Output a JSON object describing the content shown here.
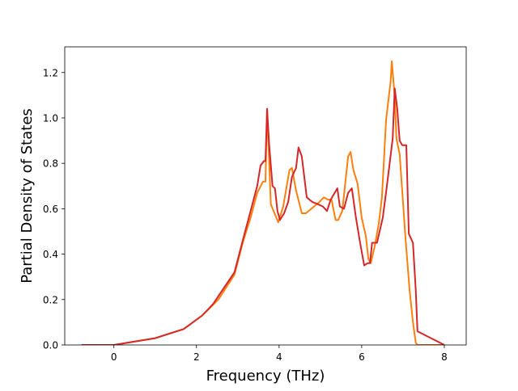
{
  "chart_data": {
    "type": "line",
    "title": "",
    "xlabel": "Frequency (THz)",
    "ylabel": "Partial Density of States",
    "xlim": [
      -1.19,
      8.53
    ],
    "ylim": [
      0,
      1.313
    ],
    "xticks": [
      0,
      2,
      4,
      6,
      8
    ],
    "xtick_labels": [
      "0",
      "2",
      "4",
      "6",
      "8"
    ],
    "yticks": [
      0.0,
      0.2,
      0.4,
      0.6,
      0.8,
      1.0,
      1.2
    ],
    "ytick_labels": [
      "0.0",
      "0.2",
      "0.4",
      "0.6",
      "0.8",
      "1.0",
      "1.2"
    ],
    "grid": false,
    "legend": null,
    "series": [
      {
        "name": "series-orange",
        "color": "#ff7f0e",
        "x": [
          -0.78,
          0,
          1.0,
          1.69,
          2.14,
          2.53,
          2.92,
          3.12,
          3.31,
          3.47,
          3.61,
          3.67,
          3.71,
          3.8,
          3.98,
          4.1,
          4.25,
          4.31,
          4.41,
          4.55,
          4.65,
          4.98,
          5.08,
          5.18,
          5.27,
          5.37,
          5.43,
          5.53,
          5.67,
          5.73,
          5.8,
          5.9,
          6.0,
          6.1,
          6.16,
          6.22,
          6.31,
          6.41,
          6.49,
          6.59,
          6.7,
          6.73,
          6.8,
          6.84,
          6.92,
          7.0,
          7.06,
          7.16,
          7.24,
          7.31,
          7.35,
          8.0
        ],
        "y": [
          0,
          0,
          0.03,
          0.07,
          0.13,
          0.2,
          0.31,
          0.45,
          0.56,
          0.67,
          0.72,
          0.72,
          1.04,
          0.62,
          0.54,
          0.61,
          0.77,
          0.78,
          0.68,
          0.58,
          0.58,
          0.63,
          0.65,
          0.64,
          0.64,
          0.55,
          0.55,
          0.59,
          0.83,
          0.85,
          0.77,
          0.71,
          0.56,
          0.48,
          0.38,
          0.36,
          0.43,
          0.53,
          0.65,
          0.99,
          1.16,
          1.25,
          1.09,
          0.91,
          0.84,
          0.63,
          0.47,
          0.24,
          0.1,
          0.01,
          0,
          0
        ]
      },
      {
        "name": "series-red",
        "color": "#d62728",
        "x": [
          -0.78,
          0,
          1.0,
          1.69,
          2.14,
          2.4,
          2.92,
          3.12,
          3.31,
          3.47,
          3.55,
          3.63,
          3.67,
          3.71,
          3.76,
          3.84,
          3.9,
          3.96,
          4.02,
          4.12,
          4.22,
          4.31,
          4.41,
          4.47,
          4.55,
          4.67,
          4.8,
          4.94,
          5.06,
          5.16,
          5.25,
          5.41,
          5.47,
          5.57,
          5.67,
          5.76,
          5.86,
          5.96,
          6.06,
          6.14,
          6.2,
          6.25,
          6.37,
          6.51,
          6.61,
          6.75,
          6.8,
          6.86,
          6.92,
          6.98,
          7.08,
          7.14,
          7.24,
          7.31,
          7.35,
          8.0
        ],
        "y": [
          0,
          0,
          0.03,
          0.07,
          0.13,
          0.18,
          0.32,
          0.46,
          0.59,
          0.7,
          0.79,
          0.81,
          0.81,
          1.04,
          0.88,
          0.7,
          0.69,
          0.59,
          0.55,
          0.58,
          0.63,
          0.74,
          0.78,
          0.87,
          0.83,
          0.65,
          0.63,
          0.62,
          0.61,
          0.59,
          0.64,
          0.69,
          0.61,
          0.6,
          0.67,
          0.69,
          0.56,
          0.45,
          0.35,
          0.36,
          0.36,
          0.45,
          0.45,
          0.56,
          0.7,
          0.91,
          1.13,
          1.04,
          0.9,
          0.88,
          0.88,
          0.49,
          0.45,
          0.24,
          0.06,
          0
        ]
      }
    ]
  }
}
